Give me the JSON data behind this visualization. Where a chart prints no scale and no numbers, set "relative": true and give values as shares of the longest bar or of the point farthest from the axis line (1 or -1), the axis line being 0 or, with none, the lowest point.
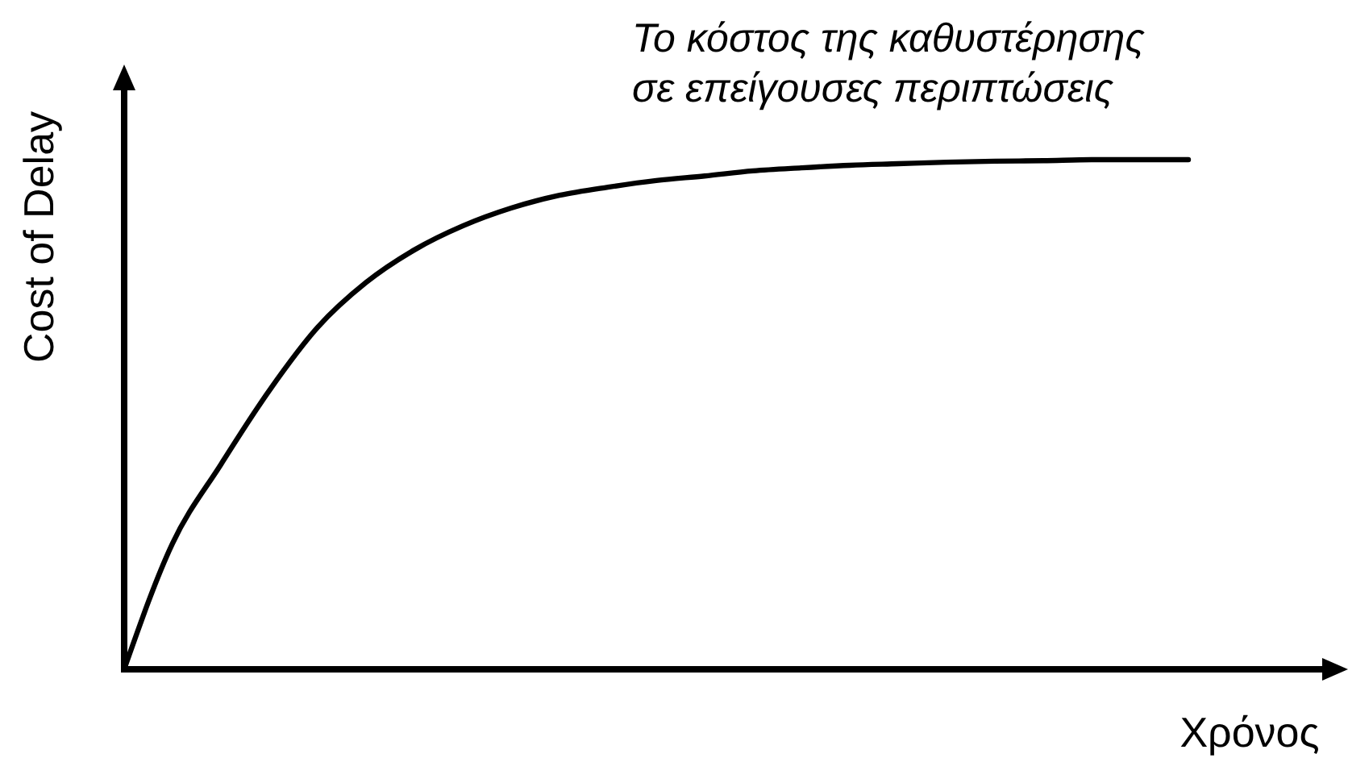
{
  "chart_data": {
    "type": "line",
    "relative": true,
    "xlabel": "Χρόνος",
    "ylabel": "Cost of Delay",
    "annotations": [
      "Το κόστος της καθυστέρησης\nσε επείγουσες περιπτώσεις"
    ],
    "categories": [
      null,
      null,
      null,
      null,
      null,
      null,
      null,
      null,
      null,
      null,
      null,
      null,
      null,
      null,
      null,
      null,
      null,
      null,
      null,
      null,
      null,
      null,
      null
    ],
    "values": [
      0,
      0.247,
      0.402,
      0.547,
      0.671,
      0.759,
      0.823,
      0.87,
      0.905,
      0.93,
      0.946,
      0.959,
      0.968,
      0.978,
      0.984,
      0.989,
      0.992,
      0.995,
      0.997,
      0.998,
      1,
      1,
      1
    ],
    "color": "#000000"
  }
}
